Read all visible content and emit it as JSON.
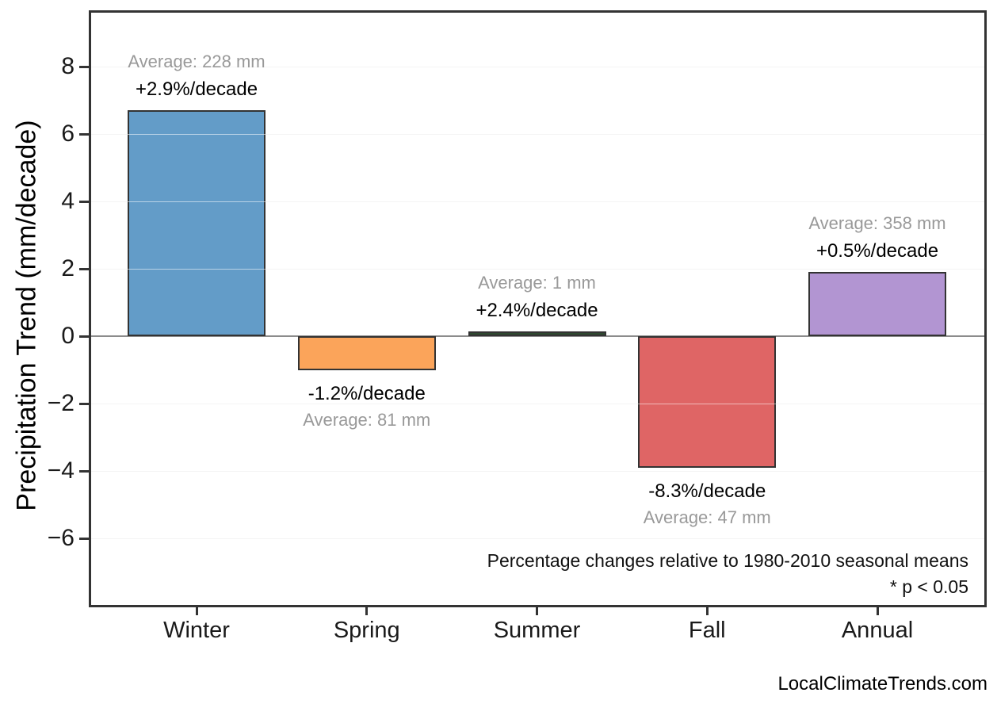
{
  "page": {
    "watermark": "LocalClimateTrends.com"
  },
  "chart_data": {
    "type": "bar",
    "title": "",
    "xlabel": "",
    "ylabel": "Precipitation Trend (mm/decade)",
    "ylim": [
      -8.05,
      9.7
    ],
    "grid": "horizontal",
    "legend": "none",
    "yticks": [
      {
        "value": 8,
        "label": "8"
      },
      {
        "value": 6,
        "label": "6"
      },
      {
        "value": 4,
        "label": "4"
      },
      {
        "value": 2,
        "label": "2"
      },
      {
        "value": 0,
        "label": "0"
      },
      {
        "value": -2,
        "label": "−2"
      },
      {
        "value": -4,
        "label": "−4"
      },
      {
        "value": -6,
        "label": "−6"
      }
    ],
    "categories": [
      "Winter",
      "Spring",
      "Summer",
      "Fall",
      "Annual"
    ],
    "series": [
      {
        "name": "Precipitation trend (mm/decade)",
        "values": [
          6.7,
          -1.0,
          0.08,
          -3.9,
          1.9
        ]
      }
    ],
    "bars": [
      {
        "category": "Winter",
        "value": 6.7,
        "color": "#639CC8",
        "pct_per_decade": 2.9,
        "average_mm": 228,
        "pct_label": "+2.9%/decade",
        "avg_label": "Average: 228 mm"
      },
      {
        "category": "Spring",
        "value": -1.0,
        "color": "#FBA45A",
        "pct_per_decade": -1.2,
        "average_mm": 81,
        "pct_label": "-1.2%/decade",
        "avg_label": "Average: 81 mm"
      },
      {
        "category": "Summer",
        "value": 0.08,
        "color": "#2E4A30",
        "pct_per_decade": 2.4,
        "average_mm": 1,
        "pct_label": "+2.4%/decade",
        "avg_label": "Average: 1 mm"
      },
      {
        "category": "Fall",
        "value": -3.9,
        "color": "#DF6565",
        "pct_per_decade": -8.3,
        "average_mm": 47,
        "pct_label": "-8.3%/decade",
        "avg_label": "Average: 47 mm"
      },
      {
        "category": "Annual",
        "value": 1.9,
        "color": "#B295D2",
        "pct_per_decade": 0.5,
        "average_mm": 358,
        "pct_label": "+0.5%/decade",
        "avg_label": "Average: 358 mm"
      }
    ],
    "footnotes": [
      "Percentage changes relative to 1980-2010 seasonal means",
      "* p < 0.05"
    ],
    "colors": {
      "frame": "#333333",
      "bar_edge": "#333333",
      "grid": "#E6E6E6",
      "zero_line": "#8C8C8C",
      "annotation_gray": "#999999",
      "tick_text": "#1a1a1a"
    }
  }
}
